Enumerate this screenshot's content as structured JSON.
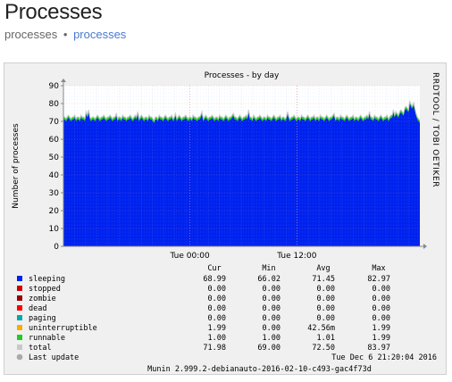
{
  "page": {
    "title": "Processes",
    "breadcrumb": [
      "processes",
      "processes"
    ],
    "breadcrumb_separator": "•"
  },
  "chart_data": {
    "type": "area",
    "title": "Processes - by day",
    "ylabel": "Number of processes",
    "watermark": "RRDTOOL / TOBI OETIKER",
    "ylim": [
      0,
      90
    ],
    "yticks": [
      "0",
      "10",
      "20",
      "30",
      "40",
      "50",
      "60",
      "70",
      "80",
      "90"
    ],
    "xticks": [
      "Tue 00:00",
      "Tue 12:00"
    ],
    "series": [
      {
        "name": "sleeping",
        "color": "#0022ee",
        "cur": "68.99",
        "min": "66.02",
        "avg": "71.45",
        "max": "82.97"
      },
      {
        "name": "stopped",
        "color": "#cc0000",
        "cur": "0.00",
        "min": "0.00",
        "avg": "0.00",
        "max": "0.00"
      },
      {
        "name": "zombie",
        "color": "#990000",
        "cur": "0.00",
        "min": "0.00",
        "avg": "0.00",
        "max": "0.00"
      },
      {
        "name": "dead",
        "color": "#ff0000",
        "cur": "0.00",
        "min": "0.00",
        "avg": "0.00",
        "max": "0.00"
      },
      {
        "name": "paging",
        "color": "#00aaaa",
        "cur": "0.00",
        "min": "0.00",
        "avg": "0.00",
        "max": "0.00"
      },
      {
        "name": "uninterruptible",
        "color": "#ffaa00",
        "cur": "1.99",
        "min": "0.00",
        "avg": "42.56m",
        "max": "1.99"
      },
      {
        "name": "runnable",
        "color": "#22cc22",
        "cur": "1.00",
        "min": "1.00",
        "avg": "1.01",
        "max": "1.99"
      },
      {
        "name": "total",
        "color": "#c8c8c8",
        "cur": "71.98",
        "min": "69.00",
        "avg": "72.50",
        "max": "83.97"
      }
    ],
    "legend_headers": [
      "Cur",
      "Min",
      "Avg",
      "Max"
    ],
    "last_update_label": "Last update",
    "last_update_value": "Tue Dec  6 21:20:04 2016",
    "footer": "Munin 2.999.2-debianauto-2016-02-10-c493-gac4f73d",
    "sleeping_profile": [
      71,
      71,
      70,
      71,
      72,
      71,
      70,
      71,
      71,
      72,
      70,
      71,
      71,
      70,
      72,
      71,
      71,
      70,
      71,
      72,
      71,
      71,
      70,
      71,
      71,
      70,
      71,
      72,
      71,
      70,
      71,
      71,
      72,
      71,
      70,
      71,
      71,
      72,
      71,
      70,
      71,
      71,
      73,
      70,
      71,
      71,
      70,
      72,
      71,
      71,
      70,
      71,
      71,
      72,
      71,
      70,
      71,
      72,
      71,
      71,
      70,
      71,
      72,
      71,
      70,
      71,
      71,
      70,
      72,
      71,
      71,
      70,
      69,
      71,
      71,
      70,
      72,
      71,
      71,
      70,
      71,
      72,
      71,
      70,
      71,
      71,
      72,
      70,
      71,
      71,
      70,
      71,
      72,
      71,
      70,
      71,
      71,
      72,
      71,
      70,
      71,
      71,
      70,
      72,
      71,
      71,
      70,
      71,
      71,
      72,
      71,
      70,
      71,
      72,
      71,
      70,
      71,
      71,
      72,
      71,
      70,
      71,
      71,
      70,
      72,
      71,
      71,
      70,
      71,
      72,
      71,
      70,
      71,
      71,
      72,
      70,
      71,
      71,
      70,
      71,
      72,
      71,
      70,
      71,
      71,
      72,
      71,
      70,
      71,
      71,
      70,
      72,
      71,
      70,
      71,
      71,
      72,
      71,
      70,
      71,
      71,
      70,
      72,
      71,
      71,
      70,
      71,
      72,
      71,
      70,
      71,
      71,
      72,
      70,
      71,
      71,
      70,
      71,
      72,
      71,
      70,
      71,
      71,
      72,
      71,
      70,
      71,
      71,
      70,
      72,
      71,
      71,
      70,
      71,
      72,
      71,
      70,
      71,
      71,
      72,
      70,
      71,
      71,
      70,
      72,
      71,
      71,
      70,
      71,
      72,
      71,
      70,
      71,
      71,
      72,
      71,
      70,
      71,
      71,
      70,
      72,
      71,
      71,
      70,
      71,
      72,
      71,
      70,
      71,
      71,
      72,
      70,
      71,
      71,
      70,
      71,
      72,
      71,
      70,
      71,
      71,
      72,
      71,
      70,
      71,
      71,
      70,
      72,
      71,
      71,
      70,
      71,
      72,
      71,
      70,
      71,
      71,
      72,
      70,
      71,
      72,
      72,
      73,
      72,
      74,
      73,
      72,
      74,
      75,
      74,
      73,
      76,
      77,
      76,
      75,
      80,
      78,
      77,
      79,
      76,
      73,
      71,
      70,
      69
    ],
    "spikes": {
      "18": 74,
      "20": 75,
      "59": 74,
      "89": 73,
      "110": 74,
      "135": 73,
      "147": 75,
      "178": 74,
      "215": 73,
      "243": 74,
      "262": 75,
      "300": 74,
      "320": 73,
      "345": 75,
      "368": 80,
      "380": 82,
      "384": 83
    }
  }
}
